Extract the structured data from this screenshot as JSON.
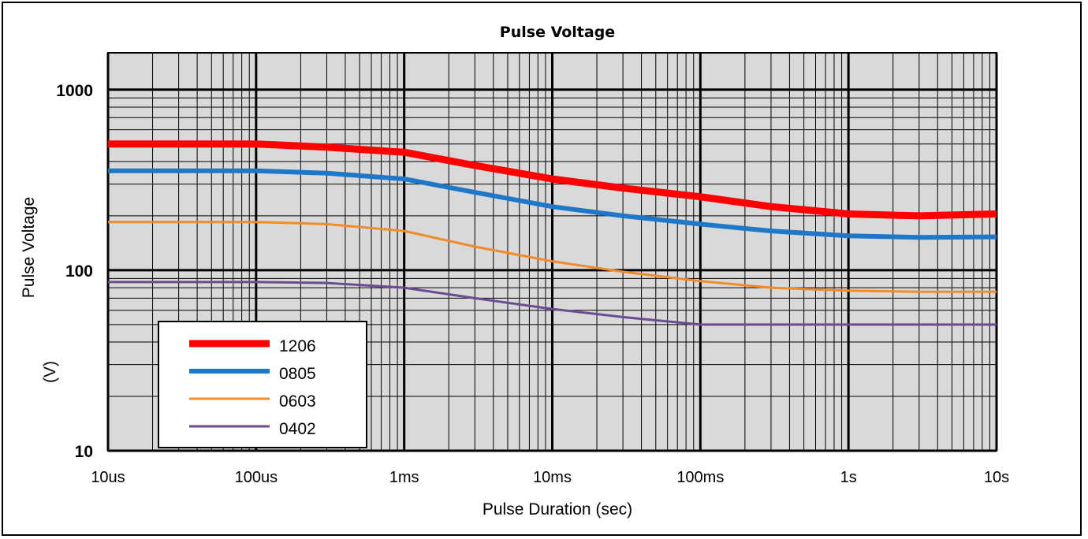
{
  "chart_data": {
    "type": "line",
    "title": "Pulse Voltage",
    "xlabel": "Pulse Duration (sec)",
    "ylabel": "Pulse Voltage",
    "ylabel_unit": "(V)",
    "x_scale": "log",
    "y_scale": "log",
    "xlim": [
      1e-05,
      10
    ],
    "ylim": [
      10,
      1600
    ],
    "grid": true,
    "legend_position": "bottom-left",
    "x_ticks": [
      {
        "value": 1e-05,
        "label": "10us"
      },
      {
        "value": 0.0001,
        "label": "100us"
      },
      {
        "value": 0.001,
        "label": "1ms"
      },
      {
        "value": 0.01,
        "label": "10ms"
      },
      {
        "value": 0.1,
        "label": "100ms"
      },
      {
        "value": 1,
        "label": "1s"
      },
      {
        "value": 10,
        "label": "10s"
      }
    ],
    "y_ticks": [
      {
        "value": 10,
        "label": "10"
      },
      {
        "value": 100,
        "label": "100"
      },
      {
        "value": 1000,
        "label": "1000"
      }
    ],
    "x": [
      1e-05,
      3e-05,
      0.0001,
      0.0003,
      0.001,
      0.003,
      0.01,
      0.03,
      0.1,
      0.3,
      1,
      3,
      10
    ],
    "series": [
      {
        "name": "1206",
        "color": "#ff0000",
        "values": [
          500,
          500,
          500,
          480,
          450,
          380,
          320,
          285,
          255,
          225,
          205,
          200,
          205
        ]
      },
      {
        "name": "0805",
        "color": "#1f77c8",
        "values": [
          355,
          355,
          355,
          345,
          320,
          270,
          225,
          200,
          180,
          165,
          155,
          152,
          153
        ]
      },
      {
        "name": "0603",
        "color": "#f28c28",
        "values": [
          185,
          185,
          185,
          180,
          165,
          135,
          112,
          98,
          87,
          80,
          77,
          76,
          76
        ]
      },
      {
        "name": "0402",
        "color": "#6a4c93",
        "values": [
          86,
          86,
          86,
          85,
          80,
          70,
          61,
          55,
          50,
          50,
          50,
          50,
          50
        ]
      }
    ]
  }
}
